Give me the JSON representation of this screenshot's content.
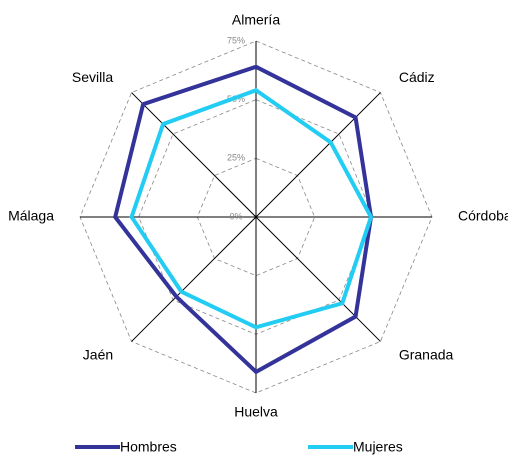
{
  "chart_data": {
    "type": "radar",
    "categories": [
      "Almería",
      "Cádiz",
      "Córdoba",
      "Granada",
      "Huelva",
      "Jaén",
      "Málaga",
      "Sevilla"
    ],
    "series": [
      {
        "name": "Hombres",
        "color": "#333399",
        "values": [
          64,
          60,
          49,
          60,
          66,
          48,
          60,
          68
        ]
      },
      {
        "name": "Mujeres",
        "color": "#22ccf2",
        "values": [
          54,
          45,
          49,
          52,
          47,
          45,
          53,
          56
        ]
      }
    ],
    "ylim": [
      0,
      75
    ],
    "yticks": [
      {
        "value": 0,
        "label": "0%"
      },
      {
        "value": 25,
        "label": "25%"
      },
      {
        "value": 50,
        "label": "50%"
      },
      {
        "value": 75,
        "label": "75%"
      }
    ],
    "grid": true,
    "legend": "bottom"
  }
}
